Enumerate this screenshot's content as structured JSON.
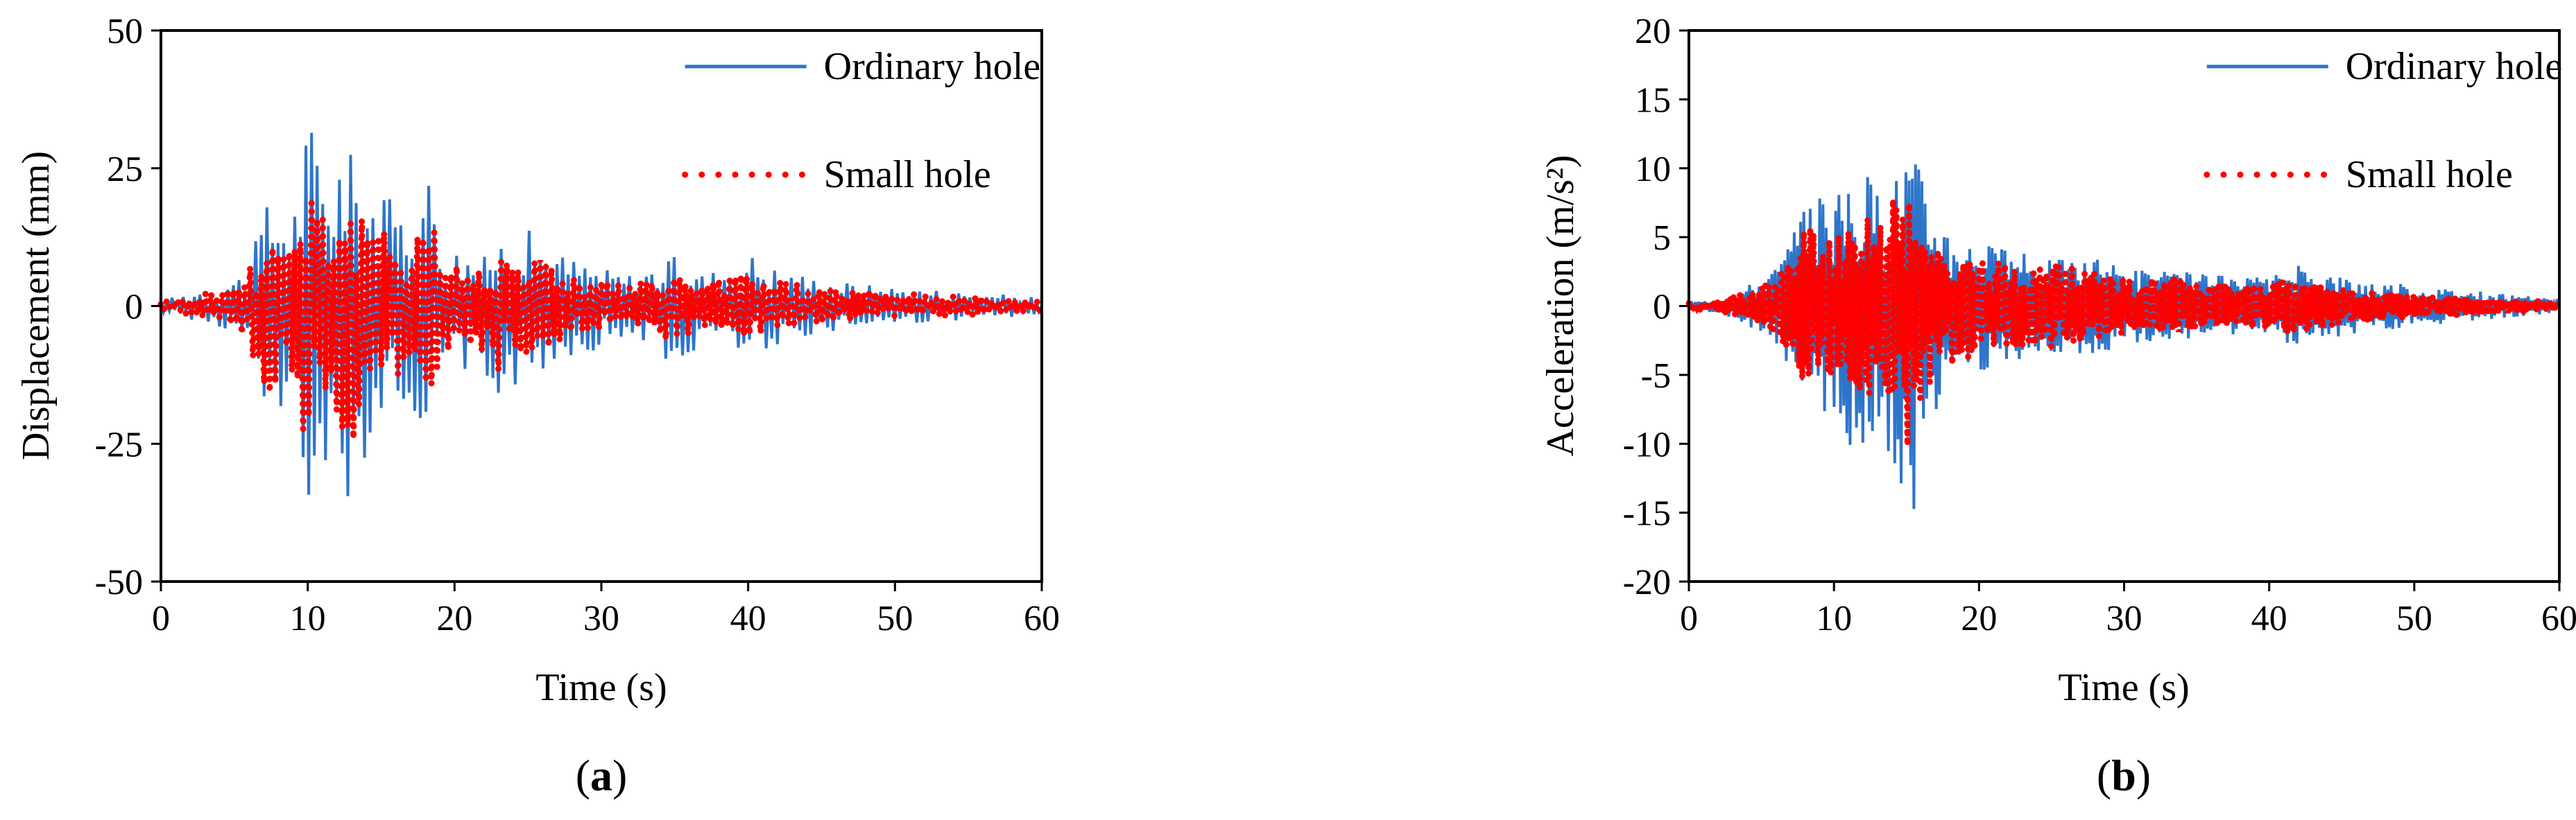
{
  "chart_data": [
    {
      "type": "line",
      "panel_label": "a",
      "xlabel": "Time (s)",
      "ylabel": "Displacement (mm)",
      "xlim": [
        0,
        60
      ],
      "ylim": [
        -50,
        50
      ],
      "xticks": [
        0,
        10,
        20,
        30,
        40,
        50,
        60
      ],
      "yticks": [
        -50,
        -25,
        0,
        25,
        50
      ],
      "grid": false,
      "legend_position": "top-right",
      "series": [
        {
          "name": "Ordinary hole",
          "color": "#2E75C9",
          "style": "solid",
          "envelope": {
            "t": [
              0,
              2,
              4,
              5.5,
              6.5,
              7,
              8,
              9,
              10,
              10.5,
              11,
              12,
              13,
              14,
              15,
              16,
              17,
              18,
              18.5,
              19,
              20,
              22,
              23,
              25,
              27,
              30,
              32,
              34,
              35,
              37,
              39,
              40,
              42,
              45,
              48,
              50,
              53,
              55,
              58,
              60
            ],
            "upper": [
              1,
              2.5,
              4,
              6,
              12,
              19,
              19,
              18,
              35,
              33,
              27,
              30,
              28,
              23,
              22,
              18,
              22,
              24,
              26,
              14,
              11,
              9,
              13,
              14,
              10,
              7,
              6,
              8,
              9,
              6,
              8,
              10,
              7,
              5,
              4,
              3.5,
              3,
              2.5,
              2,
              1.5
            ],
            "lower": [
              -1,
              -2.5,
              -4,
              -6,
              -14,
              -22,
              -20,
              -25,
              -37,
              -30,
              -28,
              -30,
              -39,
              -27,
              -22,
              -20,
              -18,
              -22,
              -24,
              -14,
              -10,
              -15,
              -17,
              -15,
              -10,
              -8,
              -6,
              -7,
              -14,
              -6,
              -7,
              -9,
              -7,
              -5,
              -4,
              -3.5,
              -3,
              -2.5,
              -2,
              -1.5
            ]
          },
          "osc_period": 0.38
        },
        {
          "name": "Small hole",
          "color": "#FF0000",
          "style": "dotted",
          "envelope": {
            "t": [
              0,
              2,
              4,
              5.5,
              6.5,
              7,
              8,
              9,
              10,
              10.5,
              11,
              12,
              13,
              14,
              15,
              16,
              17,
              18,
              18.5,
              19,
              20,
              22,
              23,
              25,
              27,
              30,
              32,
              34,
              35,
              37,
              39,
              40,
              42,
              45,
              48,
              50,
              53,
              55,
              58,
              60
            ],
            "upper": [
              0.8,
              2,
              3,
              5,
              10,
              14,
              14,
              14,
              26,
              24,
              20,
              17,
              17,
              16,
              14,
              13,
              15,
              18,
              20,
              11,
              8,
              7,
              10,
              11,
              7,
              5,
              4,
              5,
              6,
              4,
              6,
              7,
              5,
              3.5,
              3,
              2.5,
              2,
              2,
              1.5,
              1
            ],
            "lower": [
              -0.8,
              -2,
              -3,
              -5,
              -12,
              -17,
              -15,
              -19,
              -28,
              -24,
              -20,
              -22,
              -30,
              -18,
              -15,
              -14,
              -12,
              -15,
              -18,
              -10,
              -7,
              -10,
              -12,
              -10,
              -7,
              -5,
              -4,
              -5,
              -8,
              -4,
              -5,
              -6,
              -5,
              -3.5,
              -3,
              -2.5,
              -2,
              -2,
              -1.5,
              -1
            ]
          },
          "osc_period": 0.38
        }
      ]
    },
    {
      "type": "line",
      "panel_label": "b",
      "xlabel": "Time (s)",
      "ylabel": "Acceleration (m/s²)",
      "xlim": [
        0,
        60
      ],
      "ylim": [
        -20,
        20
      ],
      "xticks": [
        0,
        10,
        20,
        30,
        40,
        50,
        60
      ],
      "yticks": [
        -20,
        -15,
        -10,
        -5,
        0,
        5,
        10,
        15,
        20
      ],
      "grid": false,
      "legend_position": "top-right",
      "series": [
        {
          "name": "Ordinary hole",
          "color": "#2E75C9",
          "style": "solid",
          "envelope": {
            "t": [
              0,
              2,
              4,
              6,
              7,
              8,
              9,
              10,
              11,
              12,
              13,
              14,
              15,
              15.5,
              16,
              17,
              18,
              19,
              20,
              22,
              25,
              28,
              30,
              33,
              35,
              38,
              40,
              42,
              44,
              46,
              48,
              50,
              55,
              60
            ],
            "upper": [
              0.3,
              0.5,
              1.5,
              3,
              5,
              7,
              9,
              8,
              9,
              10,
              9,
              9,
              12,
              11.5,
              10,
              7,
              6,
              5,
              5,
              4,
              3.5,
              3.5,
              3,
              2.5,
              2.5,
              2,
              2.2,
              3,
              2.5,
              2,
              1.8,
              1.5,
              1,
              0.5
            ],
            "lower": [
              -0.3,
              -0.5,
              -1.5,
              -3,
              -5,
              -7,
              -7,
              -10,
              -10,
              -11,
              -10,
              -12,
              -14,
              -18,
              -11,
              -9,
              -8,
              -6,
              -5,
              -4,
              -3.5,
              -3.5,
              -3,
              -2.5,
              -2.5,
              -2,
              -2.2,
              -3,
              -2.5,
              -2,
              -1.8,
              -1.5,
              -1,
              -0.5
            ]
          },
          "osc_period": 0.22
        },
        {
          "name": "Small hole",
          "color": "#FF0000",
          "style": "dotted",
          "envelope": {
            "t": [
              0,
              2,
              4,
              6,
              7,
              8,
              9,
              10,
              11,
              12,
              13,
              14,
              15,
              15.5,
              16,
              17,
              18,
              19,
              20,
              22,
              25,
              28,
              30,
              33,
              35,
              38,
              40,
              42,
              44,
              46,
              48,
              50,
              55,
              60
            ],
            "upper": [
              0.2,
              0.4,
              1,
              2,
              3.5,
              6,
              5.5,
              5,
              5.5,
              7,
              6,
              8,
              8.5,
              7,
              6,
              4.5,
              4,
              3.5,
              3.5,
              3,
              3,
              2.5,
              2,
              2,
              1.8,
              1.5,
              1.8,
              2,
              1.5,
              1.2,
              1,
              0.8,
              0.6,
              0.3
            ],
            "lower": [
              -0.2,
              -0.4,
              -1,
              -2,
              -3.5,
              -6,
              -5.5,
              -5,
              -5.5,
              -7,
              -6,
              -8,
              -11,
              -9,
              -7,
              -5,
              -4.5,
              -4,
              -3.5,
              -3,
              -3,
              -2.5,
              -2,
              -2,
              -1.8,
              -1.5,
              -1.8,
              -2,
              -1.5,
              -1.2,
              -1,
              -0.8,
              -0.6,
              -0.3
            ]
          },
          "osc_period": 0.22
        }
      ]
    }
  ]
}
